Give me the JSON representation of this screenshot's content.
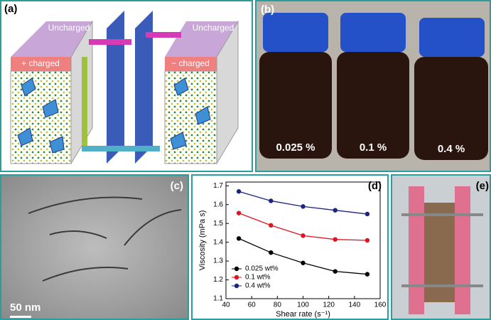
{
  "panel_a": {
    "label": "(a)",
    "left_top": "Uncharged",
    "left_front": "+ charged",
    "right_top": "Uncharged",
    "right_front": "− charged"
  },
  "panel_b": {
    "label": "(b)",
    "bottles": [
      "0.025 %",
      "0.1 %",
      "0.4 %"
    ]
  },
  "panel_c": {
    "label": "(c)",
    "scale_bar": "50 nm"
  },
  "panel_d": {
    "label": "(d)"
  },
  "panel_e": {
    "label": "(e)"
  },
  "chart_data": {
    "type": "line",
    "x_label": "Shear rate (s⁻¹)",
    "y_label": "Viscosity (mPa s)",
    "x": [
      50,
      75,
      100,
      125,
      150
    ],
    "series": [
      {
        "name": "0.025 wt%",
        "color": "#000000",
        "values": [
          1.42,
          1.345,
          1.29,
          1.245,
          1.23
        ]
      },
      {
        "name": "0.1 wt%",
        "color": "#e0141e",
        "values": [
          1.555,
          1.49,
          1.435,
          1.415,
          1.41
        ]
      },
      {
        "name": "0.4 wt%",
        "color": "#1a237e",
        "values": [
          1.67,
          1.62,
          1.59,
          1.57,
          1.55
        ]
      }
    ],
    "xlim": [
      40,
      160
    ],
    "xticks": [
      40,
      60,
      80,
      100,
      120,
      140,
      160
    ],
    "ylim": [
      1.1,
      1.72
    ],
    "yticks": [
      1.1,
      1.2,
      1.3,
      1.4,
      1.5,
      1.6,
      1.7
    ],
    "legend": "lower-left",
    "marker": "circle"
  }
}
